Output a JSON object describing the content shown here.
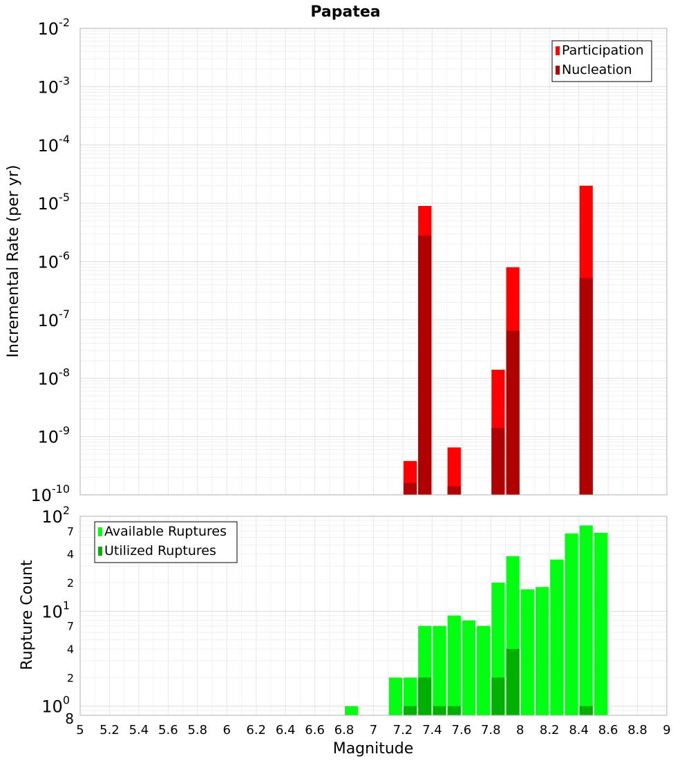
{
  "chart_data": {
    "title": "Papatea",
    "xlabel": "Magnitude",
    "xlim": [
      5,
      9
    ],
    "x_ticks": [
      "5",
      "5.2",
      "5.4",
      "5.6",
      "5.8",
      "6",
      "6.2",
      "6.4",
      "6.6",
      "6.8",
      "7",
      "7.2",
      "7.4",
      "7.6",
      "7.8",
      "8",
      "8.2",
      "8.4",
      "8.6",
      "8.8",
      "9"
    ],
    "grid": true,
    "bin_width": 0.1,
    "panels": [
      {
        "type": "bar",
        "ylabel": "Incremental Rate (per yr)",
        "yscale": "log",
        "ylim": [
          1e-10,
          0.01
        ],
        "major_ticks": [
          {
            "base": "10",
            "exp": "-10",
            "value": 1e-10
          },
          {
            "base": "10",
            "exp": "-9",
            "value": 1e-09
          },
          {
            "base": "10",
            "exp": "-8",
            "value": 1e-08
          },
          {
            "base": "10",
            "exp": "-7",
            "value": 1e-07
          },
          {
            "base": "10",
            "exp": "-6",
            "value": 1e-06
          },
          {
            "base": "10",
            "exp": "-5",
            "value": 1e-05
          },
          {
            "base": "10",
            "exp": "-4",
            "value": 0.0001
          },
          {
            "base": "10",
            "exp": "-3",
            "value": 0.001
          },
          {
            "base": "10",
            "exp": "-2",
            "value": 0.01
          }
        ],
        "legend": {
          "position": "top-right",
          "entries": [
            "Participation",
            "Nucleation"
          ]
        },
        "series": [
          {
            "name": "Participation",
            "color": "#ff0000",
            "points": [
              [
                7.25,
                3.8e-10
              ],
              [
                7.35,
                9e-06
              ],
              [
                7.55,
                6.5e-10
              ],
              [
                7.85,
                1.4e-08
              ],
              [
                7.95,
                8e-07
              ],
              [
                8.45,
                2e-05
              ]
            ]
          },
          {
            "name": "Nucleation",
            "color": "#b00000",
            "points": [
              [
                7.25,
                1.6e-10
              ],
              [
                7.35,
                2.8e-06
              ],
              [
                7.55,
                1.4e-10
              ],
              [
                7.85,
                1.4e-09
              ],
              [
                7.95,
                6.5e-08
              ],
              [
                8.45,
                5.2e-07
              ]
            ]
          }
        ]
      },
      {
        "type": "bar",
        "ylabel": "Rupture Count",
        "yscale": "log",
        "ylim": [
          0.8,
          100
        ],
        "major_ticks": [
          {
            "base": "10",
            "exp": "0",
            "value": 1
          },
          {
            "base": "10",
            "exp": "1",
            "value": 10
          },
          {
            "base": "10",
            "exp": "2",
            "value": 100
          }
        ],
        "minor_ticks": [
          {
            "label": "8",
            "value": 0.8
          },
          {
            "label": "2",
            "value": 2
          },
          {
            "label": "4",
            "value": 4
          },
          {
            "label": "7",
            "value": 7
          },
          {
            "label": "2",
            "value": 20
          },
          {
            "label": "4",
            "value": 40
          },
          {
            "label": "7",
            "value": 70
          }
        ],
        "legend": {
          "position": "top-left",
          "entries": [
            "Available Ruptures",
            "Utilized Ruptures"
          ]
        },
        "series": [
          {
            "name": "Available Ruptures",
            "color": "#00ff10",
            "points": [
              [
                6.85,
                1
              ],
              [
                7.15,
                2
              ],
              [
                7.25,
                2
              ],
              [
                7.35,
                7
              ],
              [
                7.45,
                7
              ],
              [
                7.55,
                9
              ],
              [
                7.65,
                8
              ],
              [
                7.75,
                7
              ],
              [
                7.85,
                20
              ],
              [
                7.95,
                38
              ],
              [
                8.05,
                17
              ],
              [
                8.15,
                18
              ],
              [
                8.25,
                35
              ],
              [
                8.35,
                66
              ],
              [
                8.45,
                80
              ],
              [
                8.55,
                67
              ]
            ]
          },
          {
            "name": "Utilized Ruptures",
            "color": "#00b000",
            "points": [
              [
                7.25,
                1
              ],
              [
                7.35,
                2
              ],
              [
                7.45,
                1
              ],
              [
                7.55,
                1
              ],
              [
                7.85,
                2
              ],
              [
                7.95,
                4
              ],
              [
                8.45,
                1
              ]
            ]
          }
        ]
      }
    ]
  }
}
